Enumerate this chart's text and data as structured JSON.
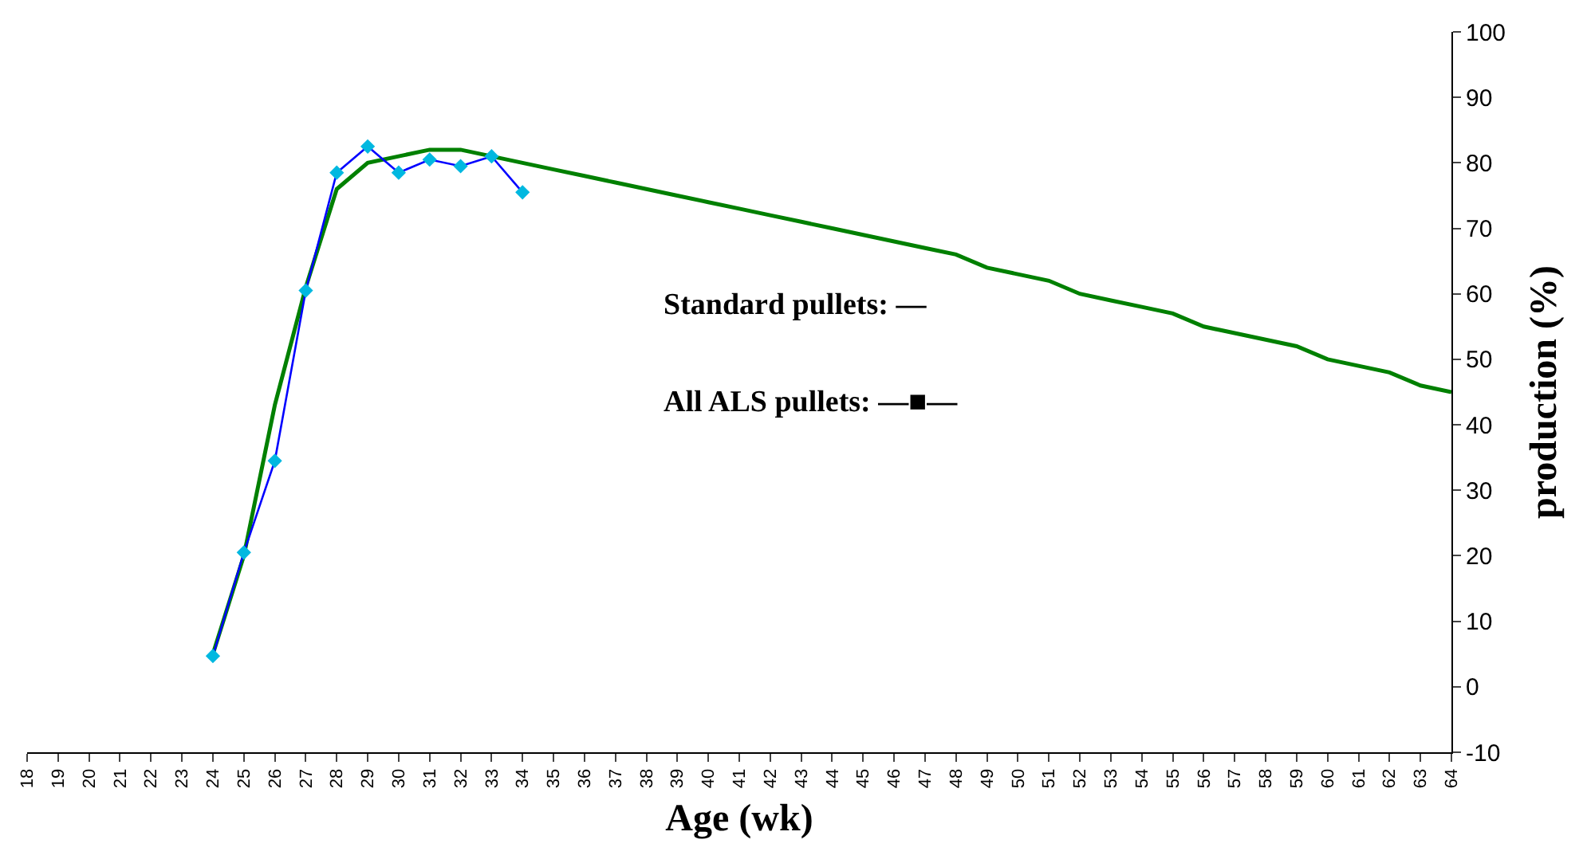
{
  "chart_data": {
    "type": "line",
    "xlabel": "Age (wk)",
    "ylabel": "production (%)",
    "x": [
      24,
      25,
      26,
      27,
      28,
      29,
      30,
      31,
      32,
      33,
      34,
      35,
      36,
      37,
      38,
      39,
      40,
      41,
      42,
      43,
      44,
      45,
      46,
      47,
      48,
      49,
      50,
      51,
      52,
      53,
      54,
      55,
      56,
      57,
      58,
      59,
      60,
      61,
      62,
      63,
      64
    ],
    "series": [
      {
        "color": "#008000",
        "marker": "none",
        "values": [
          5,
          20,
          43,
          61,
          76,
          80,
          81,
          82,
          82,
          81,
          80,
          79,
          78,
          77,
          76,
          75,
          74,
          73,
          72,
          71,
          70,
          69,
          68,
          67,
          66,
          64,
          63,
          62,
          60,
          59,
          58,
          57,
          55,
          54,
          53,
          52,
          50,
          49,
          48,
          46,
          45
        ]
      },
      {
        "color": "#0000ff",
        "marker": "diamond",
        "x": [
          24,
          25,
          26,
          27,
          28,
          29,
          30,
          31,
          32,
          33,
          34
        ],
        "values": [
          4.7,
          20.5,
          34.5,
          60.5,
          78.5,
          82.5,
          78.5,
          80.5,
          79.5,
          81,
          75.5
        ]
      }
    ],
    "xlim": [
      18,
      64
    ],
    "xticks": [
      18,
      19,
      20,
      21,
      22,
      23,
      24,
      25,
      26,
      27,
      28,
      29,
      30,
      31,
      32,
      33,
      34,
      35,
      36,
      37,
      38,
      39,
      40,
      41,
      42,
      43,
      44,
      45,
      46,
      47,
      48,
      49,
      50,
      51,
      52,
      53,
      54,
      55,
      56,
      57,
      58,
      59,
      60,
      61,
      62,
      63,
      64
    ],
    "ylim": [
      -10,
      100
    ],
    "yticks": [
      -10,
      0,
      10,
      20,
      30,
      40,
      50,
      60,
      70,
      80,
      90,
      100
    ],
    "annotations": [
      "Standard pullets: —",
      "All ALS pullets: —■—"
    ]
  }
}
